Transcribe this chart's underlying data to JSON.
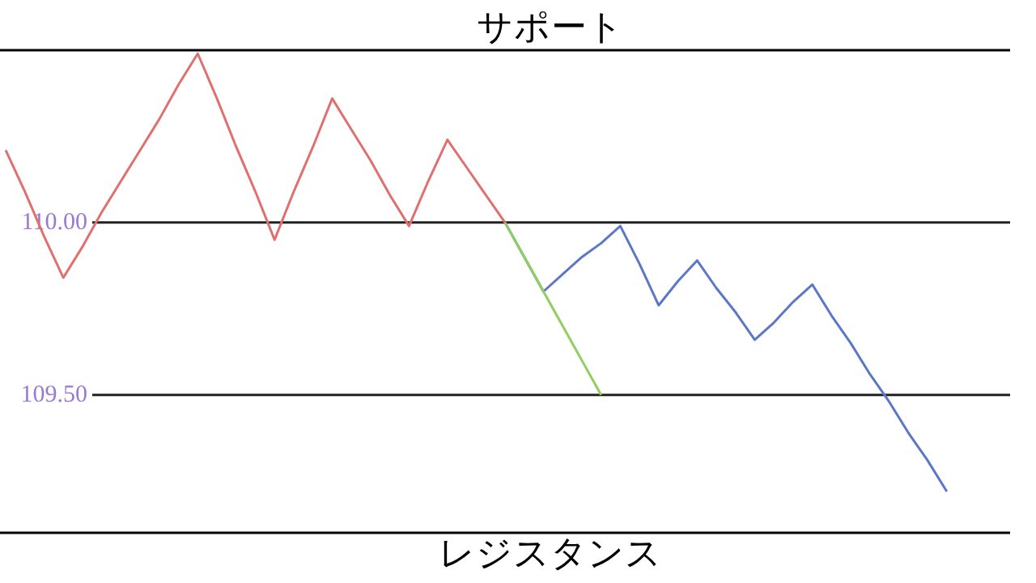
{
  "chart_data": {
    "type": "line",
    "ylim": [
      109.1,
      110.5
    ],
    "tick_labels": "y",
    "grid": "y",
    "categories": [
      null,
      null,
      null,
      null,
      null,
      null,
      null,
      null,
      null,
      null,
      null,
      null,
      null,
      null,
      null,
      null,
      null,
      null,
      null,
      null,
      null,
      null,
      null,
      null,
      null,
      null,
      null,
      null,
      null,
      null,
      null,
      null,
      null,
      null,
      null,
      null,
      null,
      null,
      null,
      null,
      null,
      null,
      null,
      null,
      null,
      null,
      null,
      null,
      null,
      null,
      null,
      null,
      null
    ],
    "yticks": [
      {
        "value": 110,
        "label": "110.00"
      },
      {
        "value": 109.5,
        "label": "109.50"
      }
    ],
    "ref_lines": [
      {
        "axis": "y",
        "value": 110.5,
        "label": "サポート",
        "color": "#000000"
      },
      {
        "axis": "y",
        "value": 109.1,
        "label": "レジスタンス",
        "color": "#000000"
      }
    ],
    "series": [
      {
        "color": "#e07070",
        "values": [
          110.21,
          110.09,
          109.96,
          109.84,
          109.93,
          110.03,
          110.12,
          110.21,
          110.3,
          110.4,
          110.49,
          110.36,
          110.22,
          110.09,
          109.95,
          110.09,
          110.22,
          110.36,
          110.27,
          110.18,
          110.08,
          109.99,
          110.12,
          110.24,
          110.16,
          110.08,
          110.0,
          null,
          null,
          null,
          null,
          null,
          null,
          null,
          null,
          null,
          null,
          null,
          null,
          null,
          null,
          null,
          null,
          null,
          null,
          null,
          null,
          null,
          null,
          null,
          null,
          null,
          null
        ]
      },
      {
        "color": "#5b78c8",
        "values": [
          null,
          null,
          null,
          null,
          null,
          null,
          null,
          null,
          null,
          null,
          null,
          null,
          null,
          null,
          null,
          null,
          null,
          null,
          null,
          null,
          null,
          null,
          null,
          null,
          null,
          null,
          110.0,
          109.9,
          109.8,
          109.85,
          109.9,
          109.94,
          109.99,
          109.88,
          109.76,
          109.83,
          109.89,
          109.81,
          109.74,
          109.66,
          109.71,
          109.77,
          109.82,
          109.73,
          109.65,
          109.56,
          109.48,
          109.39,
          109.31,
          109.22,
          null,
          null,
          null
        ]
      },
      {
        "color": "#8fcf60",
        "values": [
          null,
          null,
          null,
          null,
          null,
          null,
          null,
          null,
          null,
          null,
          null,
          null,
          null,
          null,
          null,
          null,
          null,
          null,
          null,
          null,
          null,
          null,
          null,
          null,
          null,
          null,
          110.0,
          109.9,
          109.8,
          109.7,
          109.6,
          109.5,
          null,
          null,
          null,
          null,
          null,
          null,
          null,
          null,
          null,
          null,
          null,
          null,
          null,
          null,
          null,
          null,
          null,
          null,
          null,
          null,
          null
        ]
      }
    ]
  }
}
